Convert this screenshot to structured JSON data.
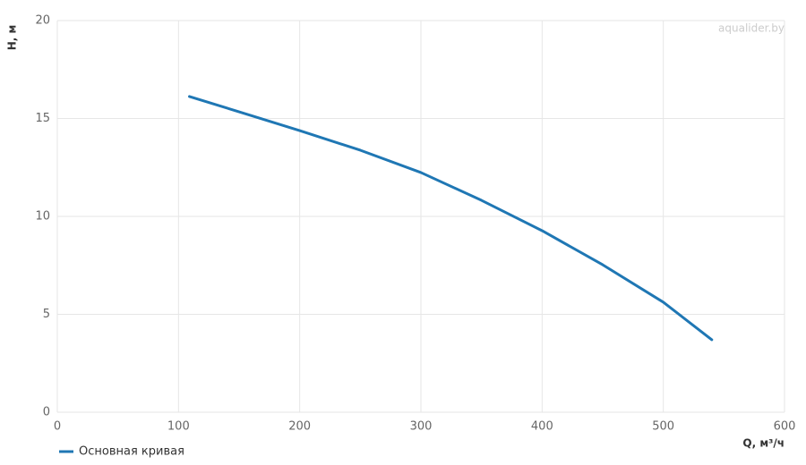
{
  "chart_data": {
    "type": "line",
    "x_label": "Q, м³/ч",
    "y_label": "H, м",
    "watermark": "aqualider.by",
    "x": [
      109,
      150,
      200,
      250,
      300,
      350,
      400,
      450,
      500,
      540
    ],
    "series": [
      {
        "name": "Основная кривая",
        "color": "#1f77b4",
        "values": [
          16.12,
          15.34,
          14.38,
          13.38,
          12.24,
          10.82,
          9.27,
          7.53,
          5.62,
          3.7
        ]
      }
    ],
    "xlim": [
      0,
      600
    ],
    "xticks": [
      0,
      100,
      200,
      300,
      400,
      500,
      600
    ],
    "ylim": [
      0,
      20
    ],
    "yticks": [
      0,
      5,
      10,
      15,
      20
    ],
    "grid": true
  }
}
